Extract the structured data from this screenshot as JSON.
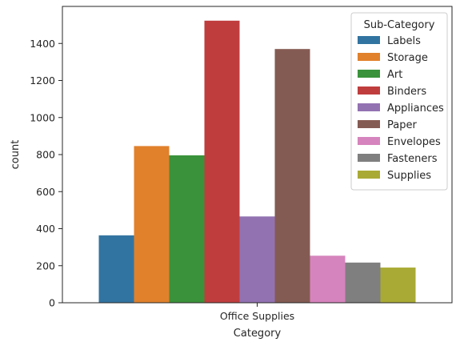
{
  "chart_data": {
    "type": "bar",
    "xlabel": "Category",
    "ylabel": "count",
    "categories": [
      "Office Supplies"
    ],
    "ylim": [
      0,
      1600
    ],
    "yticks": [
      0,
      200,
      400,
      600,
      800,
      1000,
      1200,
      1400
    ],
    "grid": false,
    "legend": {
      "title": "Sub-Category",
      "placement": "top-right"
    },
    "series": [
      {
        "name": "Labels",
        "values": [
          364
        ],
        "color": "#3274a1"
      },
      {
        "name": "Storage",
        "values": [
          846
        ],
        "color": "#e1812c"
      },
      {
        "name": "Art",
        "values": [
          796
        ],
        "color": "#3a923a"
      },
      {
        "name": "Binders",
        "values": [
          1523
        ],
        "color": "#c03d3e"
      },
      {
        "name": "Appliances",
        "values": [
          466
        ],
        "color": "#9372b2"
      },
      {
        "name": "Paper",
        "values": [
          1370
        ],
        "color": "#845b53"
      },
      {
        "name": "Envelopes",
        "values": [
          254
        ],
        "color": "#d684bd"
      },
      {
        "name": "Fasteners",
        "values": [
          217
        ],
        "color": "#7f7f7f"
      },
      {
        "name": "Supplies",
        "values": [
          190
        ],
        "color": "#a9aa35"
      }
    ]
  }
}
